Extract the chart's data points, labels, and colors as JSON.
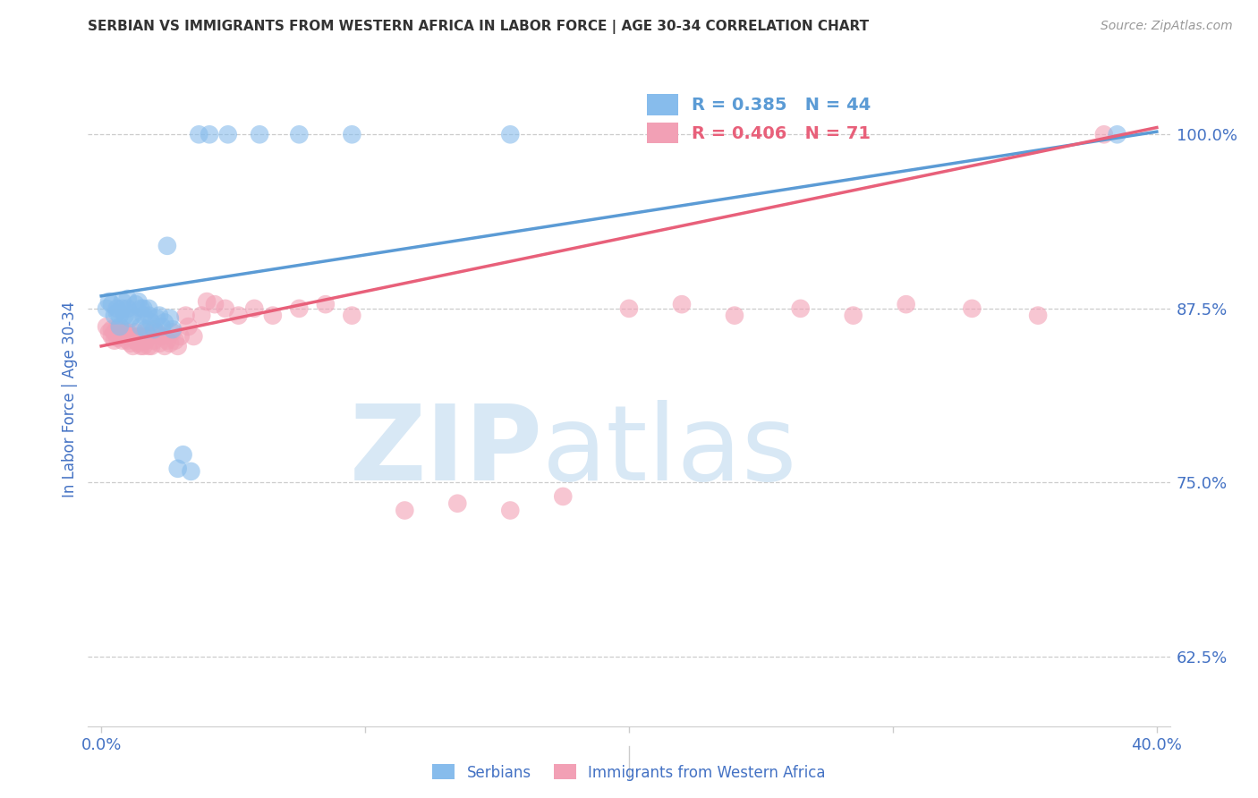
{
  "title": "SERBIAN VS IMMIGRANTS FROM WESTERN AFRICA IN LABOR FORCE | AGE 30-34 CORRELATION CHART",
  "source": "Source: ZipAtlas.com",
  "ylabel": "In Labor Force | Age 30-34",
  "ytick_labels": [
    "100.0%",
    "87.5%",
    "75.0%",
    "62.5%"
  ],
  "ytick_values": [
    1.0,
    0.875,
    0.75,
    0.625
  ],
  "xlim": [
    -0.005,
    0.405
  ],
  "ylim": [
    0.575,
    1.045
  ],
  "legend_blue_R": "R = 0.385",
  "legend_blue_N": "N = 44",
  "legend_pink_R": "R = 0.406",
  "legend_pink_N": "N = 71",
  "legend_label_blue": "Serbians",
  "legend_label_pink": "Immigrants from Western Africa",
  "blue_color": "#87BCEC",
  "pink_color": "#F2A0B5",
  "blue_line_color": "#5B9BD5",
  "pink_line_color": "#E8607A",
  "title_color": "#333333",
  "source_color": "#999999",
  "tick_label_color": "#4472C4",
  "watermark_color": "#D8E8F5",
  "grid_color": "#CCCCCC",
  "background_color": "#FFFFFF",
  "blue_line_x": [
    0.0,
    0.4
  ],
  "blue_line_y": [
    0.884,
    1.002
  ],
  "pink_line_x": [
    0.0,
    0.4
  ],
  "pink_line_y": [
    0.848,
    1.005
  ],
  "blue_x": [
    0.002,
    0.003,
    0.004,
    0.005,
    0.006,
    0.006,
    0.007,
    0.007,
    0.008,
    0.008,
    0.009,
    0.01,
    0.01,
    0.011,
    0.012,
    0.013,
    0.014,
    0.015,
    0.015,
    0.016,
    0.016,
    0.017,
    0.018,
    0.018,
    0.019,
    0.02,
    0.021,
    0.022,
    0.023,
    0.024,
    0.025,
    0.026,
    0.027,
    0.029,
    0.031,
    0.034,
    0.037,
    0.041,
    0.048,
    0.06,
    0.075,
    0.095,
    0.155,
    0.385
  ],
  "blue_y": [
    0.875,
    0.88,
    0.878,
    0.87,
    0.872,
    0.875,
    0.862,
    0.87,
    0.875,
    0.88,
    0.87,
    0.875,
    0.882,
    0.868,
    0.87,
    0.878,
    0.88,
    0.862,
    0.875,
    0.87,
    0.875,
    0.86,
    0.87,
    0.875,
    0.865,
    0.86,
    0.868,
    0.87,
    0.862,
    0.865,
    0.92,
    0.868,
    0.86,
    0.76,
    0.77,
    0.758,
    1.0,
    1.0,
    1.0,
    1.0,
    1.0,
    1.0,
    1.0,
    1.0
  ],
  "pink_x": [
    0.002,
    0.003,
    0.004,
    0.004,
    0.005,
    0.005,
    0.006,
    0.006,
    0.007,
    0.007,
    0.008,
    0.008,
    0.009,
    0.009,
    0.01,
    0.01,
    0.011,
    0.011,
    0.012,
    0.012,
    0.013,
    0.013,
    0.014,
    0.014,
    0.015,
    0.015,
    0.016,
    0.016,
    0.017,
    0.017,
    0.018,
    0.018,
    0.019,
    0.02,
    0.02,
    0.021,
    0.022,
    0.023,
    0.024,
    0.025,
    0.026,
    0.027,
    0.028,
    0.029,
    0.03,
    0.032,
    0.033,
    0.035,
    0.038,
    0.04,
    0.043,
    0.047,
    0.052,
    0.058,
    0.065,
    0.075,
    0.085,
    0.095,
    0.115,
    0.135,
    0.155,
    0.175,
    0.2,
    0.22,
    0.24,
    0.265,
    0.285,
    0.305,
    0.33,
    0.355,
    0.38
  ],
  "pink_y": [
    0.862,
    0.858,
    0.86,
    0.855,
    0.852,
    0.858,
    0.86,
    0.854,
    0.858,
    0.855,
    0.852,
    0.86,
    0.855,
    0.858,
    0.852,
    0.858,
    0.85,
    0.855,
    0.848,
    0.855,
    0.852,
    0.858,
    0.85,
    0.855,
    0.848,
    0.852,
    0.855,
    0.848,
    0.852,
    0.858,
    0.848,
    0.855,
    0.848,
    0.86,
    0.852,
    0.858,
    0.85,
    0.855,
    0.848,
    0.852,
    0.85,
    0.858,
    0.852,
    0.848,
    0.855,
    0.87,
    0.862,
    0.855,
    0.87,
    0.88,
    0.878,
    0.875,
    0.87,
    0.875,
    0.87,
    0.875,
    0.878,
    0.87,
    0.73,
    0.735,
    0.73,
    0.74,
    0.875,
    0.878,
    0.87,
    0.875,
    0.87,
    0.878,
    0.875,
    0.87,
    1.0
  ]
}
